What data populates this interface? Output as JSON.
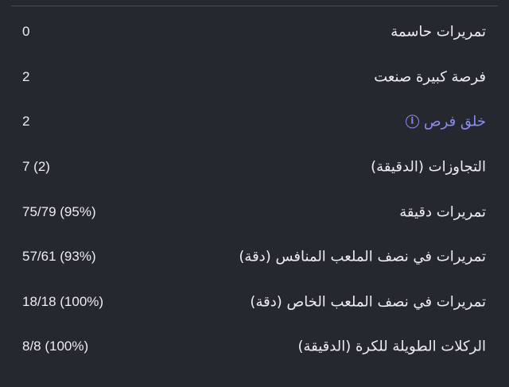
{
  "stats": [
    {
      "label": "تمريرات حاسمة",
      "value": "0"
    },
    {
      "label": "فرصة كبيرة صنعت",
      "value": "2"
    },
    {
      "label": "خلق فرص",
      "value": "2",
      "info_icon": "info-circle-icon",
      "accent": "#8c8cf0"
    },
    {
      "label": "التجاوزات (الدقيقة)",
      "value": "7 (2)"
    },
    {
      "label": "تمريرات دقيقة",
      "value": "75/79 (95%)"
    },
    {
      "label": "تمريرات في نصف الملعب المنافس (دقة)",
      "value": "57/61 (93%)"
    },
    {
      "label": "تمريرات في نصف الملعب الخاص (دقة)",
      "value": "18/18 (100%)"
    },
    {
      "label": "الركلات الطويلة للكرة (الدقيقة)",
      "value": "8/8 (100%)"
    }
  ],
  "info_glyph": "i"
}
